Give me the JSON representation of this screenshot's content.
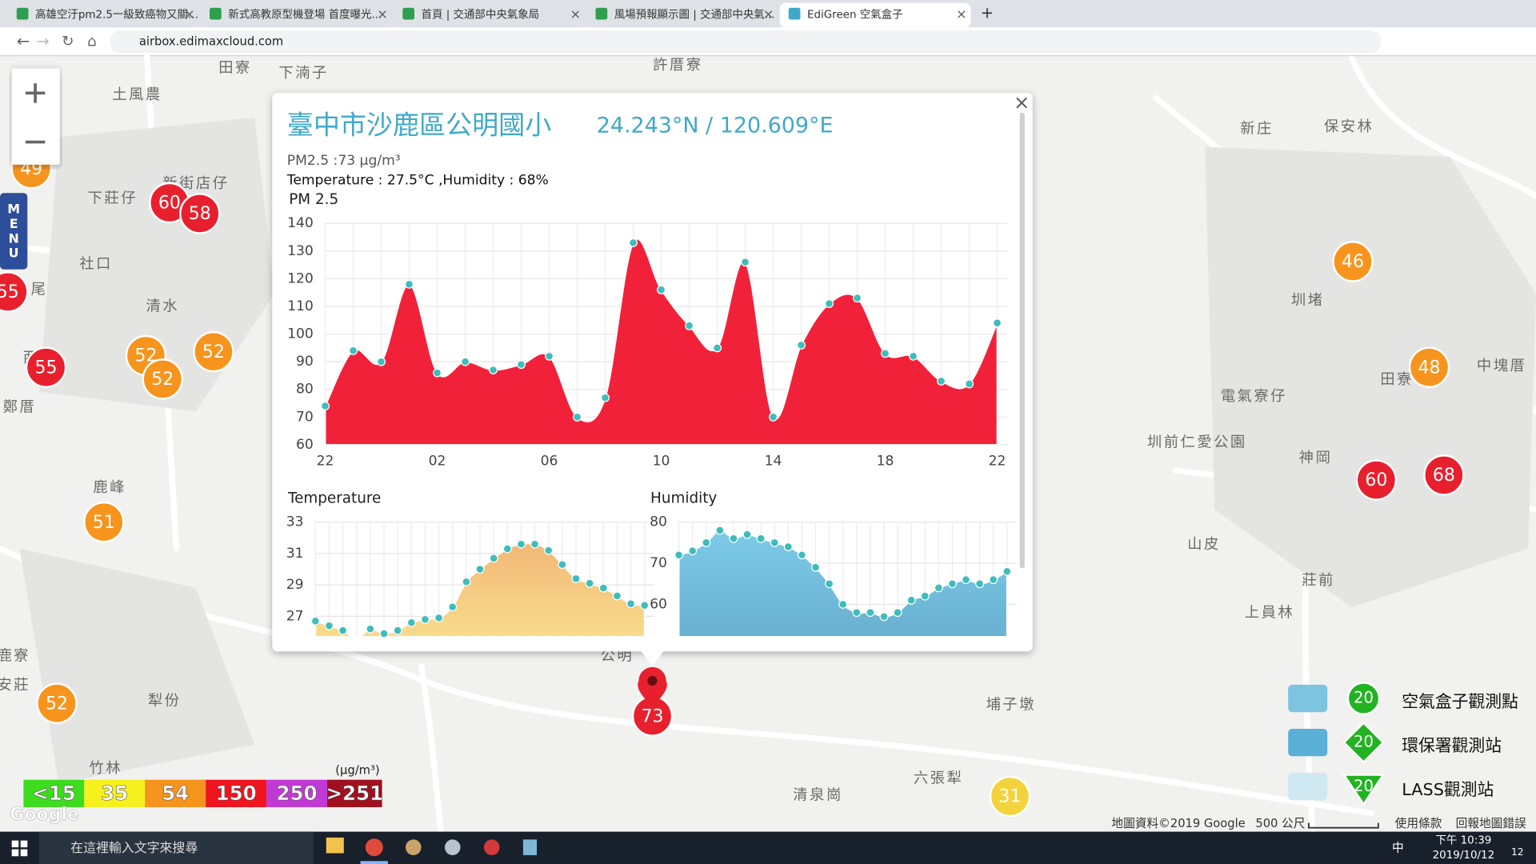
{
  "browser": {
    "tabs": [
      "高雄空汙pm2.5一級致癌物又關...",
      "新式高教原型機登場 首度曝光...",
      "首頁 | 交通部中央氣象局",
      "風場預報顯示圖 | 交通部中央氣...",
      "EdiGreen 空氣盒子"
    ],
    "address": "airbox.edimaxcloud.com"
  },
  "map": {
    "menu": "MENU",
    "places": [
      "田寮",
      "下湳子",
      "許厝寮",
      "土風農",
      "新街店仔",
      "下莊仔",
      "社口",
      "清水",
      "尾",
      "西",
      "鄭厝",
      "鹿峰",
      "鹿寮",
      "安莊",
      "犁份",
      "竹林",
      "新庄",
      "保安林",
      "圳堵",
      "田寮",
      "中塊厝",
      "電氣寮仔",
      "圳前仁愛公園",
      "神岡",
      "山皮",
      "莊前",
      "上員林",
      "埔子墩",
      "六張犁",
      "清泉崗",
      "公明"
    ],
    "markers": [
      {
        "value": 49,
        "color": "#f7941d"
      },
      {
        "value": 60,
        "color": "#e8202e"
      },
      {
        "value": 58,
        "color": "#e8202e"
      },
      {
        "value": 55,
        "color": "#e8202e"
      },
      {
        "value": 55,
        "color": "#e8202e"
      },
      {
        "value": 52,
        "color": "#f7941d"
      },
      {
        "value": 52,
        "color": "#f7941d"
      },
      {
        "value": 52,
        "color": "#f7941d"
      },
      {
        "value": 51,
        "color": "#f7941d"
      },
      {
        "value": 52,
        "color": "#f7941d"
      },
      {
        "value": 46,
        "color": "#f7941d"
      },
      {
        "value": 48,
        "color": "#f7941d"
      },
      {
        "value": 60,
        "color": "#e8202e"
      },
      {
        "value": 68,
        "color": "#e8202e"
      },
      {
        "value": 31,
        "color": "#f2d33c"
      },
      {
        "value": 73,
        "color": "#e8202e"
      }
    ],
    "legend": {
      "unit": "(μg/m³)",
      "levels": [
        {
          "label": "<15",
          "color": "#3ddc1e"
        },
        {
          "label": "35",
          "color": "#f5f01e"
        },
        {
          "label": "54",
          "color": "#f7941d"
        },
        {
          "label": "150",
          "color": "#f0141e"
        },
        {
          "label": "250",
          "color": "#c23ad6"
        },
        {
          "label": ">251",
          "color": "#a0101e"
        }
      ]
    },
    "stations": [
      "空氣盒子觀測點",
      "環保署觀測站",
      "LASS觀測站"
    ],
    "station_badge": 20,
    "attribution": "地圖資料©2019 Google",
    "scale": "500 公尺",
    "terms": "使用條款",
    "report": "回報地圖錯誤"
  },
  "popup": {
    "title": "臺中市沙鹿區公明國小",
    "coords": "24.243°N / 120.609°E",
    "pm25": "PM2.5 :73 μg/m³",
    "weather": "Temperature : 27.5°C ,Humidity : 68%"
  },
  "chart_data": [
    {
      "type": "area",
      "title": "PM 2.5",
      "categories": [
        "22",
        null,
        null,
        null,
        "02",
        null,
        null,
        null,
        "06",
        null,
        null,
        null,
        "10",
        null,
        null,
        null,
        "14",
        null,
        null,
        null,
        "18",
        null,
        null,
        null,
        "22"
      ],
      "values": [
        74,
        94,
        90,
        118,
        86,
        90,
        87,
        89,
        92,
        70,
        77,
        133,
        116,
        103,
        95,
        126,
        70,
        96,
        111,
        113,
        93,
        92,
        83,
        82,
        104
      ],
      "color": "#f2213a",
      "point_color": "#3fbcbc",
      "ylim": [
        60,
        140
      ],
      "yticks": [
        60,
        70,
        80,
        90,
        100,
        110,
        120,
        130,
        140
      ],
      "grid": true
    },
    {
      "type": "area",
      "title": "Temperature",
      "values": [
        26.7,
        26.4,
        26.1,
        25.6,
        26.2,
        25.9,
        26.1,
        26.6,
        26.8,
        26.9,
        27.6,
        29.2,
        30.0,
        30.7,
        31.3,
        31.6,
        31.6,
        31.2,
        30.3,
        29.4,
        29.1,
        28.8,
        28.3,
        27.8,
        27.7
      ],
      "color": "#f5c98a",
      "point_color": "#3fbcbc",
      "ylim": [
        25.7,
        33
      ],
      "yticks": [
        27,
        29,
        31,
        33
      ],
      "grid": true
    },
    {
      "type": "area",
      "title": "Humidity",
      "values": [
        72,
        73,
        75,
        78,
        76,
        77,
        76,
        75,
        74,
        72,
        69,
        65,
        60,
        58,
        58,
        57,
        58,
        61,
        62,
        64,
        65,
        66,
        65,
        66,
        68
      ],
      "color": "#7cc4e0",
      "point_color": "#3fbcbc",
      "ylim": [
        52.1,
        80
      ],
      "yticks": [
        60,
        70,
        80
      ],
      "grid": true
    }
  ],
  "taskbar": {
    "search": "在這裡輸入文字來搜尋",
    "ime": "中",
    "time": "下午 10:39",
    "date": "2019/10/12",
    "notifications": 12
  }
}
